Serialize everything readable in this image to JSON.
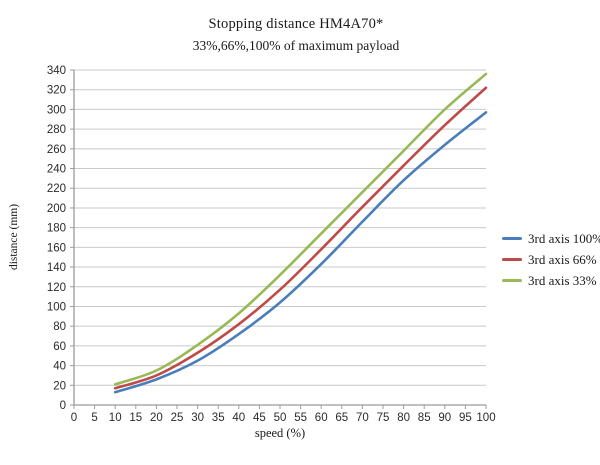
{
  "chart_data": {
    "type": "line",
    "title": "Stopping distance HM4A70*",
    "subtitle": "33%,66%,100% of maximum payload",
    "xlabel": "speed (%)",
    "ylabel": "distance (mm)",
    "xlim": [
      0,
      100
    ],
    "ylim": [
      0,
      340
    ],
    "x_ticks": [
      0,
      5,
      10,
      15,
      20,
      25,
      30,
      35,
      40,
      45,
      50,
      55,
      60,
      65,
      70,
      75,
      80,
      85,
      90,
      95,
      100
    ],
    "y_ticks": [
      0,
      20,
      40,
      60,
      80,
      100,
      120,
      140,
      160,
      180,
      200,
      220,
      240,
      260,
      280,
      300,
      320,
      340
    ],
    "grid": "horizontal",
    "grid_color": "#c9c9c9",
    "axis_color": "#9b9b9b",
    "legend_position": "right",
    "x": [
      10,
      20,
      30,
      40,
      50,
      60,
      70,
      80,
      90,
      100
    ],
    "series": [
      {
        "name": "3rd axis 100%",
        "color": "#4a7ebb",
        "values": [
          13,
          26,
          45,
          72,
          104,
          143,
          186,
          228,
          264,
          297
        ]
      },
      {
        "name": "3rd axis 66%",
        "color": "#be4b48",
        "values": [
          17,
          30,
          53,
          82,
          117,
          158,
          201,
          243,
          284,
          322
        ]
      },
      {
        "name": "3rd axis 33%",
        "color": "#98b954",
        "values": [
          21,
          35,
          61,
          93,
          132,
          174,
          216,
          258,
          300,
          336
        ]
      }
    ]
  }
}
